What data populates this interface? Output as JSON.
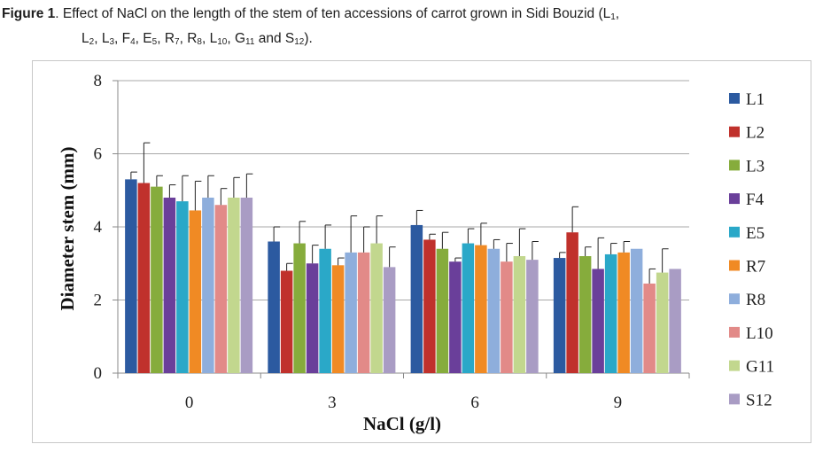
{
  "caption": {
    "figure_label": "Figure 1",
    "line1_prefix": ". Effect of NaCl on the length of the stem of ten accessions of carrot grown in Sidi Bouzid (L",
    "line1_sub": "1",
    "line1_suffix": ",",
    "line2_items": [
      {
        "base": "L",
        "sub": "2",
        "sep": ", "
      },
      {
        "base": "L",
        "sub": "3",
        "sep": ", "
      },
      {
        "base": "F",
        "sub": "4",
        "sep": ", "
      },
      {
        "base": "E",
        "sub": "5",
        "sep": ", "
      },
      {
        "base": "R",
        "sub": "7",
        "sep": ", "
      },
      {
        "base": "R",
        "sub": "8",
        "sep": ", "
      },
      {
        "base": "L",
        "sub": "10",
        "sep": ", "
      },
      {
        "base": "G",
        "sub": "11",
        "sep": " and "
      },
      {
        "base": "S",
        "sub": "12",
        "sep": ")."
      }
    ]
  },
  "chart_data": {
    "type": "bar",
    "xlabel": "NaCl (g/l)",
    "ylabel": "Diameter stem (mm)",
    "ylim": [
      0,
      8
    ],
    "yticks": [
      0,
      2,
      4,
      6,
      8
    ],
    "grid": true,
    "legend_position": "right",
    "categories": [
      "0",
      "3",
      "6",
      "9"
    ],
    "series": [
      {
        "name": "L1",
        "color": "#2c5aa0",
        "values": [
          5.3,
          3.6,
          4.05,
          3.15
        ],
        "errors": [
          0.2,
          0.4,
          0.4,
          0.15
        ]
      },
      {
        "name": "L2",
        "color": "#c0312c",
        "values": [
          5.2,
          2.8,
          3.65,
          3.85
        ],
        "errors": [
          1.1,
          0.2,
          0.15,
          0.7
        ]
      },
      {
        "name": "L3",
        "color": "#86ac3c",
        "values": [
          5.1,
          3.55,
          3.4,
          3.2
        ],
        "errors": [
          0.3,
          0.6,
          0.45,
          0.25
        ]
      },
      {
        "name": "F4",
        "color": "#6a3f9a",
        "values": [
          4.8,
          3.0,
          3.05,
          2.85
        ],
        "errors": [
          0.35,
          0.5,
          0.1,
          0.85
        ]
      },
      {
        "name": "E5",
        "color": "#2aa8c8",
        "values": [
          4.7,
          3.4,
          3.55,
          3.25
        ],
        "errors": [
          0.7,
          0.65,
          0.4,
          0.3
        ]
      },
      {
        "name": "R7",
        "color": "#f08a24",
        "values": [
          4.45,
          2.95,
          3.5,
          3.3
        ],
        "errors": [
          0.8,
          0.2,
          0.6,
          0.3
        ]
      },
      {
        "name": "R8",
        "color": "#8eaedc",
        "values": [
          4.8,
          3.3,
          3.4,
          3.4
        ],
        "errors": [
          0.6,
          1.0,
          0.25,
          0.0
        ]
      },
      {
        "name": "L10",
        "color": "#e28a88",
        "values": [
          4.6,
          3.3,
          3.05,
          2.45
        ],
        "errors": [
          0.45,
          0.7,
          0.5,
          0.4
        ]
      },
      {
        "name": "G11",
        "color": "#c2d78e",
        "values": [
          4.8,
          3.55,
          3.2,
          2.75
        ],
        "errors": [
          0.55,
          0.75,
          0.75,
          0.65
        ]
      },
      {
        "name": "S12",
        "color": "#a99cc4",
        "values": [
          4.8,
          2.9,
          3.1,
          2.85
        ],
        "errors": [
          0.65,
          0.55,
          0.5,
          0.0
        ]
      }
    ]
  }
}
